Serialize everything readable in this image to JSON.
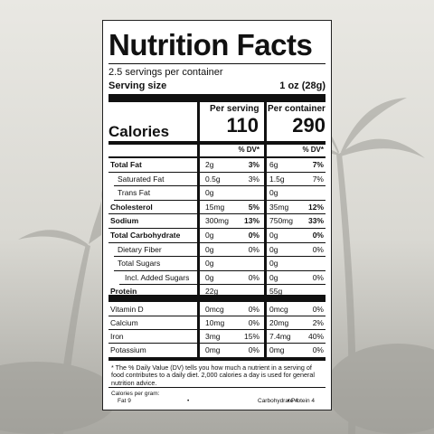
{
  "title": "Nutrition Facts",
  "servings": "2.5 servings per container",
  "serving_size": {
    "label": "Serving size",
    "value": "1 oz (28g)"
  },
  "calories": {
    "label": "Calories",
    "per_serving_heading": "Per serving",
    "per_serving": "110",
    "per_container_heading": "Per container",
    "per_container": "290"
  },
  "dv_heading": {
    "serving": "% DV*",
    "container": "% DV*"
  },
  "rows": [
    {
      "name": "Total Fat",
      "bold": true,
      "indent": 0,
      "serving": [
        "2g",
        "3%"
      ],
      "container": [
        "6g",
        "7%"
      ]
    },
    {
      "name": "Saturated Fat",
      "bold": false,
      "indent": 1,
      "serving": [
        "0.5g",
        "3%"
      ],
      "container": [
        "1.5g",
        "7%"
      ]
    },
    {
      "name": "Trans Fat",
      "bold": false,
      "indent": 1,
      "serving": [
        "0g"
      ],
      "container": [
        "0g"
      ]
    },
    {
      "name": "Cholesterol",
      "bold": true,
      "indent": 0,
      "serving": [
        "15mg",
        "5%"
      ],
      "container": [
        "35mg",
        "12%"
      ]
    },
    {
      "name": "Sodium",
      "bold": true,
      "indent": 0,
      "serving": [
        "300mg",
        "13%"
      ],
      "container": [
        "750mg",
        "33%"
      ]
    },
    {
      "name": "Total Carbohydrate",
      "bold": true,
      "indent": 0,
      "serving": [
        "0g",
        "0%"
      ],
      "container": [
        "0g",
        "0%"
      ]
    },
    {
      "name": "Dietary Fiber",
      "bold": false,
      "indent": 1,
      "serving": [
        "0g",
        "0%"
      ],
      "container": [
        "0g",
        "0%"
      ]
    },
    {
      "name": "Total Sugars",
      "bold": false,
      "indent": 1,
      "serving": [
        "0g"
      ],
      "container": [
        "0g"
      ]
    },
    {
      "name": "Incl. Added Sugars",
      "bold": false,
      "indent": 2,
      "serving": [
        "0g",
        "0%"
      ],
      "container": [
        "0g",
        "0%"
      ]
    },
    {
      "name": "Protein",
      "bold": true,
      "indent": 0,
      "serving": [
        "22g"
      ],
      "container": [
        "55g"
      ]
    }
  ],
  "vitamins": [
    {
      "name": "Vitamin D",
      "serving": [
        "0mcg",
        "0%"
      ],
      "container": [
        "0mcg",
        "0%"
      ]
    },
    {
      "name": "Calcium",
      "serving": [
        "10mg",
        "0%"
      ],
      "container": [
        "20mg",
        "2%"
      ]
    },
    {
      "name": "Iron",
      "serving": [
        "3mg",
        "15%"
      ],
      "container": [
        "7.4mg",
        "40%"
      ]
    },
    {
      "name": "Potassium",
      "serving": [
        "0mg",
        "0%"
      ],
      "container": [
        "0mg",
        "0%"
      ]
    }
  ],
  "footnote": "* The % Daily Value (DV) tells you how much a nutrient in a serving of food contributes to a daily diet. 2,000 calories a day is used for general nutrition advice.",
  "calories_per_gram": {
    "label": "Calories per gram:",
    "items": [
      "Fat 9",
      "•",
      "Carbohydrate 4",
      "•",
      "Protein 4"
    ]
  }
}
